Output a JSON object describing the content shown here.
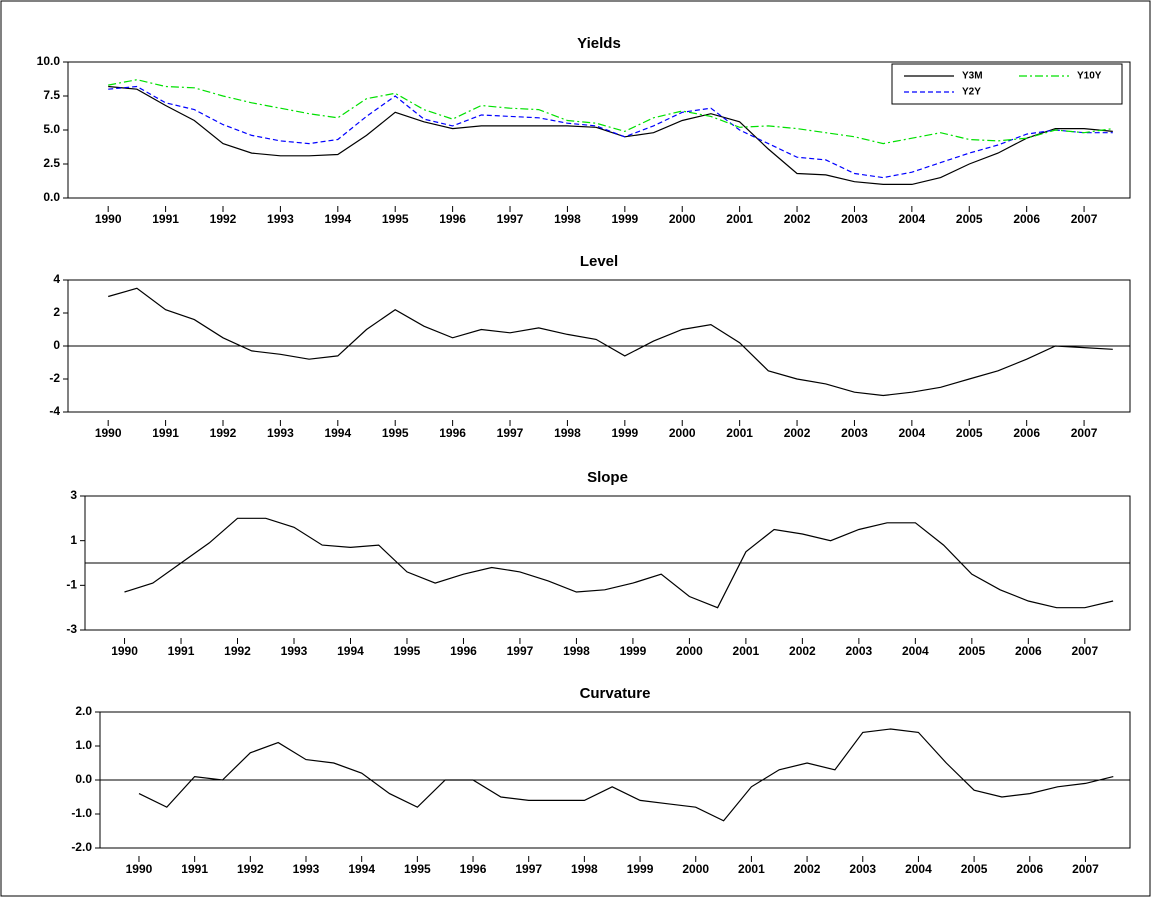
{
  "chart_data": [
    {
      "type": "line",
      "title": "Yields",
      "x": [
        1990,
        1990.5,
        1991,
        1991.5,
        1992,
        1992.5,
        1993,
        1993.5,
        1994,
        1994.5,
        1995,
        1995.5,
        1996,
        1996.5,
        1997,
        1997.5,
        1998,
        1998.5,
        1999,
        1999.5,
        2000,
        2000.5,
        2001,
        2001.5,
        2002,
        2002.5,
        2003,
        2003.5,
        2004,
        2004.5,
        2005,
        2005.5,
        2006,
        2006.5,
        2007,
        2007.5
      ],
      "series": [
        {
          "name": "Y3M",
          "color": "#000000",
          "dash": "solid",
          "values": [
            8.2,
            8.0,
            6.8,
            5.7,
            4.0,
            3.3,
            3.1,
            3.1,
            3.2,
            4.6,
            6.3,
            5.6,
            5.1,
            5.3,
            5.3,
            5.3,
            5.3,
            5.2,
            4.5,
            4.8,
            5.7,
            6.2,
            5.6,
            3.6,
            1.8,
            1.7,
            1.2,
            1.0,
            1.0,
            1.5,
            2.5,
            3.3,
            4.4,
            5.1,
            5.1,
            4.9
          ]
        },
        {
          "name": "Y2Y",
          "color": "#0000ff",
          "dash": "dash",
          "values": [
            8.0,
            8.2,
            7.0,
            6.5,
            5.4,
            4.6,
            4.2,
            4.0,
            4.3,
            6.0,
            7.5,
            5.8,
            5.3,
            6.1,
            6.0,
            5.9,
            5.5,
            5.3,
            4.5,
            5.3,
            6.3,
            6.6,
            5.0,
            4.0,
            3.0,
            2.8,
            1.8,
            1.5,
            1.9,
            2.6,
            3.3,
            3.9,
            4.7,
            5.0,
            4.8,
            4.8
          ]
        },
        {
          "name": "Y10Y",
          "color": "#00e000",
          "dash": "dashdot",
          "values": [
            8.3,
            8.7,
            8.2,
            8.1,
            7.5,
            7.0,
            6.6,
            6.2,
            5.9,
            7.3,
            7.7,
            6.5,
            5.8,
            6.8,
            6.6,
            6.5,
            5.7,
            5.5,
            4.9,
            5.9,
            6.4,
            6.0,
            5.2,
            5.3,
            5.1,
            4.8,
            4.5,
            4.0,
            4.4,
            4.8,
            4.3,
            4.2,
            4.4,
            5.0,
            4.8,
            5.1
          ]
        }
      ],
      "xlim": [
        1989.3,
        2007.8
      ],
      "xticks": [
        1990,
        1991,
        1992,
        1993,
        1994,
        1995,
        1996,
        1997,
        1998,
        1999,
        2000,
        2001,
        2002,
        2003,
        2004,
        2005,
        2006,
        2007
      ],
      "ylim": [
        0,
        10
      ],
      "yticks": [
        {
          "value": 0,
          "label": "0.0"
        },
        {
          "value": 2.5,
          "label": "2.5"
        },
        {
          "value": 5,
          "label": "5.0"
        },
        {
          "value": 7.5,
          "label": "7.5"
        },
        {
          "value": 10,
          "label": "10.0"
        }
      ],
      "legend": "upper right",
      "zero_line": false
    },
    {
      "type": "line",
      "title": "Level",
      "x": [
        1990,
        1990.5,
        1991,
        1991.5,
        1992,
        1992.5,
        1993,
        1993.5,
        1994,
        1994.5,
        1995,
        1995.5,
        1996,
        1996.5,
        1997,
        1997.5,
        1998,
        1998.5,
        1999,
        1999.5,
        2000,
        2000.5,
        2001,
        2001.5,
        2002,
        2002.5,
        2003,
        2003.5,
        2004,
        2004.5,
        2005,
        2005.5,
        2006,
        2006.5,
        2007,
        2007.5
      ],
      "series": [
        {
          "color": "#000000",
          "dash": "solid",
          "values": [
            3.0,
            3.5,
            2.2,
            1.6,
            0.5,
            -0.3,
            -0.5,
            -0.8,
            -0.6,
            1.0,
            2.2,
            1.2,
            0.5,
            1.0,
            0.8,
            1.1,
            0.7,
            0.4,
            -0.6,
            0.3,
            1.0,
            1.3,
            0.2,
            -1.5,
            -2.0,
            -2.3,
            -2.8,
            -3.0,
            -2.8,
            -2.5,
            -2.0,
            -1.5,
            -0.8,
            0.0,
            -0.1,
            -0.2
          ]
        }
      ],
      "xlim": [
        1989.3,
        2007.8
      ],
      "xticks": [
        1990,
        1991,
        1992,
        1993,
        1994,
        1995,
        1996,
        1997,
        1998,
        1999,
        2000,
        2001,
        2002,
        2003,
        2004,
        2005,
        2006,
        2007
      ],
      "ylim": [
        -4,
        4
      ],
      "yticks": [
        -4,
        -2,
        0,
        2,
        4
      ],
      "zero_line": true
    },
    {
      "type": "line",
      "title": "Slope",
      "x": [
        1990,
        1990.5,
        1991,
        1991.5,
        1992,
        1992.5,
        1993,
        1993.5,
        1994,
        1994.5,
        1995,
        1995.5,
        1996,
        1996.5,
        1997,
        1997.5,
        1998,
        1998.5,
        1999,
        1999.5,
        2000,
        2000.5,
        2001,
        2001.5,
        2002,
        2002.5,
        2003,
        2003.5,
        2004,
        2004.5,
        2005,
        2005.5,
        2006,
        2006.5,
        2007,
        2007.5
      ],
      "series": [
        {
          "color": "#000000",
          "dash": "solid",
          "values": [
            -1.3,
            -0.9,
            0.0,
            0.9,
            2.0,
            2.0,
            1.6,
            0.8,
            0.7,
            0.8,
            -0.4,
            -0.9,
            -0.5,
            -0.2,
            -0.4,
            -0.8,
            -1.3,
            -1.2,
            -0.9,
            -0.5,
            -1.5,
            -2.0,
            0.5,
            1.5,
            1.3,
            1.0,
            1.5,
            1.8,
            1.8,
            0.8,
            -0.5,
            -1.2,
            -1.7,
            -2.0,
            -2.0,
            -1.7
          ]
        }
      ],
      "xlim": [
        1989.3,
        2007.8
      ],
      "xticks": [
        1990,
        1991,
        1992,
        1993,
        1994,
        1995,
        1996,
        1997,
        1998,
        1999,
        2000,
        2001,
        2002,
        2003,
        2004,
        2005,
        2006,
        2007
      ],
      "ylim": [
        -3,
        3
      ],
      "yticks": [
        -3,
        -1,
        1,
        3
      ],
      "zero_line": true
    },
    {
      "type": "line",
      "title": "Curvature",
      "x": [
        1990,
        1990.5,
        1991,
        1991.5,
        1992,
        1992.5,
        1993,
        1993.5,
        1994,
        1994.5,
        1995,
        1995.5,
        1996,
        1996.5,
        1997,
        1997.5,
        1998,
        1998.5,
        1999,
        1999.5,
        2000,
        2000.5,
        2001,
        2001.5,
        2002,
        2002.5,
        2003,
        2003.5,
        2004,
        2004.5,
        2005,
        2005.5,
        2006,
        2006.5,
        2007,
        2007.5
      ],
      "series": [
        {
          "color": "#000000",
          "dash": "solid",
          "values": [
            -0.4,
            -0.8,
            0.1,
            0.0,
            0.8,
            1.1,
            0.6,
            0.5,
            0.2,
            -0.4,
            -0.8,
            0.0,
            0.0,
            -0.5,
            -0.6,
            -0.6,
            -0.6,
            -0.2,
            -0.6,
            -0.7,
            -0.8,
            -1.2,
            -0.2,
            0.3,
            0.5,
            0.3,
            1.4,
            1.5,
            1.4,
            0.5,
            -0.3,
            -0.5,
            -0.4,
            -0.2,
            -0.1,
            0.1
          ]
        }
      ],
      "xlim": [
        1989.3,
        2007.8
      ],
      "xticks": [
        1990,
        1991,
        1992,
        1993,
        1994,
        1995,
        1996,
        1997,
        1998,
        1999,
        2000,
        2001,
        2002,
        2003,
        2004,
        2005,
        2006,
        2007
      ],
      "ylim": [
        -2,
        2
      ],
      "yticks": [
        {
          "value": -2,
          "label": "-2.0"
        },
        {
          "value": -1,
          "label": "-1.0"
        },
        {
          "value": 0,
          "label": "0.0"
        },
        {
          "value": 1,
          "label": "1.0"
        },
        {
          "value": 2,
          "label": "2.0"
        }
      ],
      "zero_line": true
    }
  ]
}
